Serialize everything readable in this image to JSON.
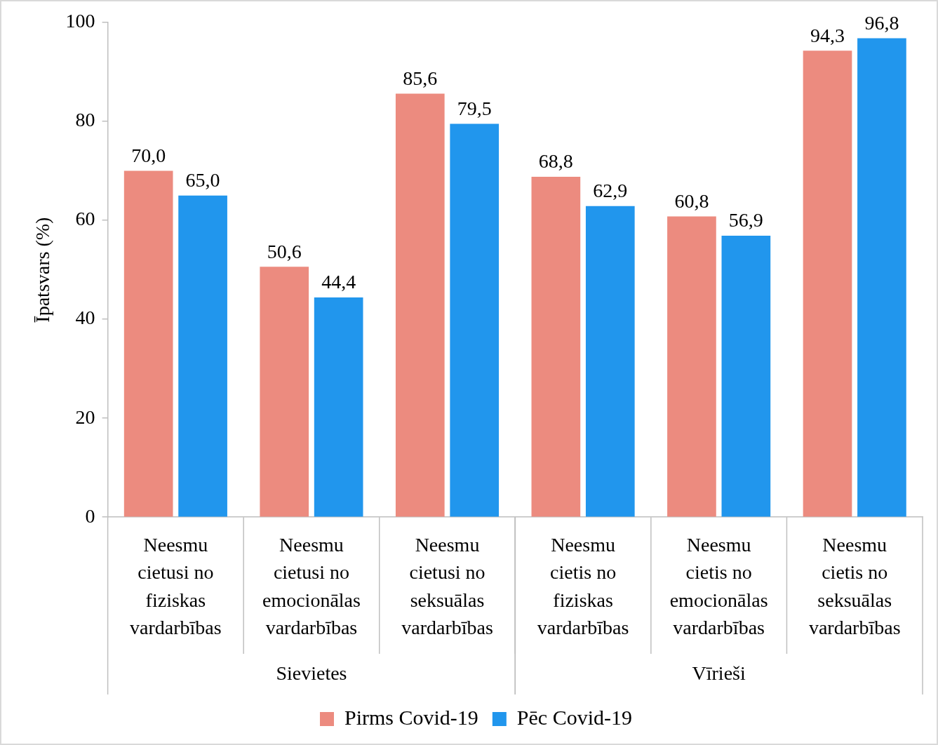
{
  "chart_data": {
    "type": "bar",
    "ylabel": "Īpatsvars (%)",
    "categories": [
      "Neesmu cietusi no fiziskas vardarbības",
      "Neesmu cietusi no emocionālas vardarbības",
      "Neesmu cietusi no seksuālas vardarbības",
      "Neesmu cietis no fiziskas vardarbības",
      "Neesmu cietis no emocionālas vardarbības",
      "Neesmu cietis no seksuālas vardarbības"
    ],
    "series": [
      {
        "name": "Pirms Covid-19",
        "color": "#ec8b7f",
        "values": [
          70.0,
          50.6,
          85.6,
          68.8,
          60.8,
          94.3
        ],
        "value_labels": [
          "70,0",
          "50,6",
          "85,6",
          "68,8",
          "60,8",
          "94,3"
        ]
      },
      {
        "name": "Pēc Covid-19",
        "color": "#2196ed",
        "values": [
          65.0,
          44.4,
          79.5,
          62.9,
          56.9,
          96.8
        ],
        "value_labels": [
          "65,0",
          "44,4",
          "79,5",
          "62,9",
          "56,9",
          "96,8"
        ]
      }
    ],
    "annotations": [
      "Sievietes",
      "Vīrieši"
    ],
    "ylim": [
      0,
      100
    ],
    "yticks": [
      0,
      20,
      40,
      60,
      80,
      100
    ],
    "grid": false,
    "legend": "bottom"
  }
}
